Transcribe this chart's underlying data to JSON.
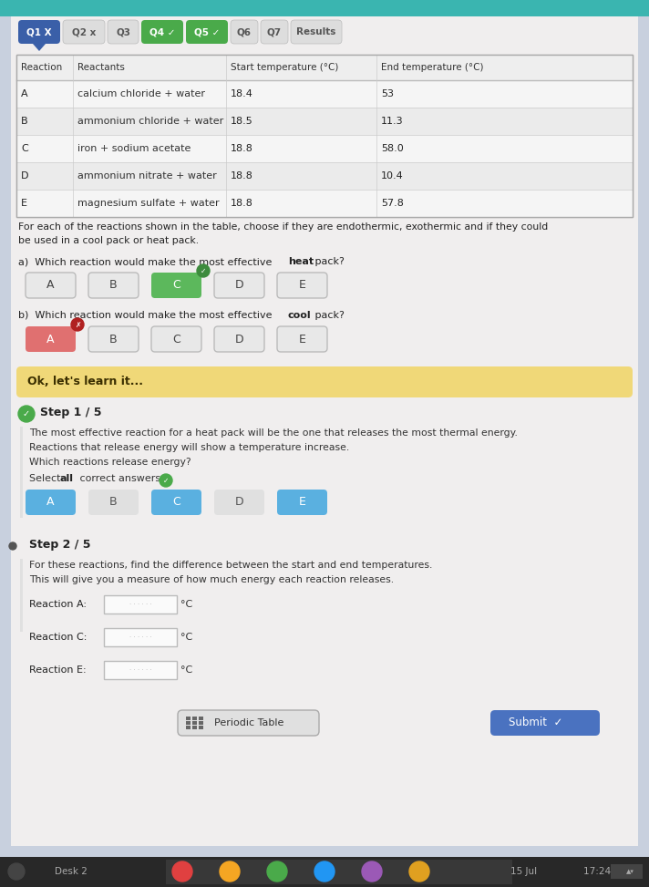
{
  "bg_color": "#c8d0de",
  "content_bg": "#f0eeee",
  "teal_header": "#3ab5b0",
  "tab_items": [
    {
      "label": "Q1 X",
      "bg": "#3a5fa8",
      "fg": "#ffffff"
    },
    {
      "label": "Q2 x",
      "bg": null,
      "fg": "#555555"
    },
    {
      "label": "Q3",
      "bg": null,
      "fg": "#555555"
    },
    {
      "label": "Q4 ✓",
      "bg": "#4aaa4a",
      "fg": "#ffffff"
    },
    {
      "label": "Q5 ✓",
      "bg": "#4aaa4a",
      "fg": "#ffffff"
    },
    {
      "label": "Q6",
      "bg": null,
      "fg": "#555555"
    },
    {
      "label": "Q7",
      "bg": null,
      "fg": "#555555"
    },
    {
      "label": "Results",
      "bg": null,
      "fg": "#555555"
    }
  ],
  "table_headers": [
    "Reaction",
    "Reactants",
    "Start temperature (°C)",
    "End temperature (°C)"
  ],
  "table_rows": [
    [
      "A",
      "calcium chloride + water",
      "18.4",
      "53"
    ],
    [
      "B",
      "ammonium chloride + water",
      "18.5",
      "11.3"
    ],
    [
      "C",
      "iron + sodium acetate",
      "18.8",
      "58.0"
    ],
    [
      "D",
      "ammonium nitrate + water",
      "18.8",
      "10.4"
    ],
    [
      "E",
      "magnesium sulfate + water",
      "18.8",
      "57.8"
    ]
  ],
  "instruction_text": "For each of the reactions shown in the table, choose if they are endothermic, exothermic and if they could\nbe used in a cool pack or heat pack.",
  "mcq_labels": [
    "A",
    "B",
    "C",
    "D",
    "E"
  ],
  "heat_selected": "C",
  "cool_selected": "A",
  "ok_learn_text": "Ok, let's learn it...",
  "ok_learn_bg": "#f0d878",
  "step1_header": "Step 1 / 5",
  "step1_text1": "The most effective reaction for a heat pack will be the one that releases the most thermal energy.",
  "step1_text2": "Reactions that release energy will show a temperature increase.",
  "step1_text3": "Which reactions release energy?",
  "step1_selected": [
    "A",
    "C",
    "E"
  ],
  "step2_header": "Step 2 / 5",
  "step2_text1": "For these reactions, find the difference between the start and end temperatures.",
  "step2_text2": "This will give you a measure of how much energy each reaction releases.",
  "reaction_inputs": [
    "Reaction A:",
    "Reaction C:",
    "Reaction E:"
  ],
  "periodic_btn": "  Periodic Table",
  "submit_btn": "Submit  ✓",
  "taskbar_items": [
    "Desk 2",
    "❯",
    "❯"
  ],
  "taskbar_date": "15 Jul",
  "taskbar_time": "17:24 GB"
}
